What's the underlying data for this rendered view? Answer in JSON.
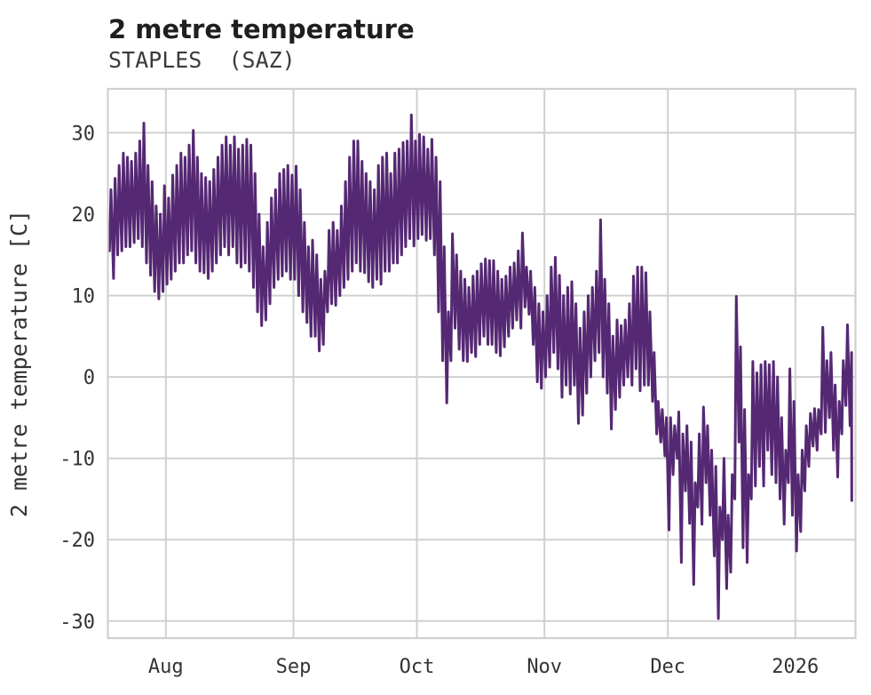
{
  "chart_data": {
    "type": "line",
    "title": "2 metre temperature",
    "subtitle": "STAPLES  (SAZ)",
    "ylabel": "2 metre temperature [C]",
    "series_name": "2 metre temperature",
    "unit": "C",
    "line_color": "#552873",
    "grid_color": "#d0d0d0",
    "background_color": "#ffffff",
    "grid": true,
    "legend": "none",
    "y_ticks": [
      -30,
      -20,
      -10,
      0,
      10,
      20,
      30
    ],
    "ylim": [
      -32.1,
      35.4
    ],
    "x_tick_labels": [
      "Aug",
      "Sep",
      "Oct",
      "Nov",
      "Dec",
      "2026"
    ],
    "x_tick_positions_days": [
      14,
      45,
      75,
      106,
      136,
      167
    ],
    "xlim_days": [
      -0.1,
      181.6
    ],
    "daily_min_max": [
      [
        15.5,
        23
      ],
      [
        12.1,
        24.4
      ],
      [
        15,
        26
      ],
      [
        15.5,
        27.5
      ],
      [
        16,
        27
      ],
      [
        16,
        26.5
      ],
      [
        16.5,
        27.5
      ],
      [
        17,
        29
      ],
      [
        16,
        31.2
      ],
      [
        14,
        26
      ],
      [
        12.5,
        24
      ],
      [
        10.5,
        21
      ],
      [
        9.6,
        20
      ],
      [
        10.5,
        23.5
      ],
      [
        11.4,
        22
      ],
      [
        12,
        24.8
      ],
      [
        13,
        26
      ],
      [
        14,
        27.5
      ],
      [
        14,
        27
      ],
      [
        15,
        28.5
      ],
      [
        15.5,
        30.3
      ],
      [
        14,
        27
      ],
      [
        13,
        25
      ],
      [
        12.8,
        24.5
      ],
      [
        12.1,
        24
      ],
      [
        13,
        25.5
      ],
      [
        14,
        27
      ],
      [
        15,
        28.5
      ],
      [
        16,
        29.5
      ],
      [
        15,
        28.5
      ],
      [
        16,
        29.5
      ],
      [
        14,
        28
      ],
      [
        13.5,
        28.5
      ],
      [
        14,
        29.2
      ],
      [
        13,
        28.5
      ],
      [
        11,
        25
      ],
      [
        8,
        20
      ],
      [
        6.3,
        16
      ],
      [
        7,
        19
      ],
      [
        9,
        22
      ],
      [
        11,
        23
      ],
      [
        12,
        25
      ],
      [
        12.4,
        25.5
      ],
      [
        13,
        26
      ],
      [
        12,
        24.8
      ],
      [
        12,
        25.9
      ],
      [
        10,
        23
      ],
      [
        8,
        19
      ],
      [
        6.7,
        16
      ],
      [
        5,
        16.8
      ],
      [
        5,
        15
      ],
      [
        3.2,
        12
      ],
      [
        4,
        13
      ],
      [
        8,
        18
      ],
      [
        9,
        19
      ],
      [
        8.8,
        18
      ],
      [
        10,
        21
      ],
      [
        11,
        24
      ],
      [
        12,
        27
      ],
      [
        13,
        29
      ],
      [
        14,
        29
      ],
      [
        13,
        26.5
      ],
      [
        12.8,
        25
      ],
      [
        11.7,
        24
      ],
      [
        11,
        23
      ],
      [
        12,
        26
      ],
      [
        11.4,
        27
      ],
      [
        13,
        27.5
      ],
      [
        13,
        25
      ],
      [
        14,
        27.5
      ],
      [
        14,
        28
      ],
      [
        15,
        28.8
      ],
      [
        16,
        29
      ],
      [
        17,
        32.2
      ],
      [
        16.1,
        29
      ],
      [
        17,
        29.8
      ],
      [
        17.5,
        29.5
      ],
      [
        16.8,
        28
      ],
      [
        17,
        29.2
      ],
      [
        15,
        27
      ],
      [
        8,
        24
      ],
      [
        2,
        16
      ],
      [
        -3.2,
        8
      ],
      [
        2,
        17.6
      ],
      [
        6,
        15
      ],
      [
        3.4,
        13
      ],
      [
        2,
        12
      ],
      [
        1.9,
        11
      ],
      [
        3,
        12.4
      ],
      [
        2.5,
        13
      ],
      [
        4,
        13.9
      ],
      [
        5,
        14.5
      ],
      [
        4,
        14.3
      ],
      [
        4,
        14.3
      ],
      [
        3,
        13
      ],
      [
        2.6,
        12
      ],
      [
        3.7,
        12.4
      ],
      [
        5,
        13.5
      ],
      [
        6,
        14
      ],
      [
        7,
        15.5
      ],
      [
        6,
        17.7
      ],
      [
        8.6,
        13.5
      ],
      [
        7.7,
        13
      ],
      [
        4,
        11
      ],
      [
        -0.6,
        9
      ],
      [
        -1.4,
        8
      ],
      [
        0,
        10
      ],
      [
        1.2,
        13.5
      ],
      [
        3,
        14.7
      ],
      [
        1,
        12.5
      ],
      [
        -2.5,
        10
      ],
      [
        -1,
        11
      ],
      [
        -2.1,
        11.7
      ],
      [
        -1,
        9
      ],
      [
        -5.7,
        6
      ],
      [
        -4.7,
        8
      ],
      [
        -2,
        10
      ],
      [
        0,
        11
      ],
      [
        2,
        13
      ],
      [
        3,
        19.3
      ],
      [
        0,
        12
      ],
      [
        -2,
        9
      ],
      [
        -6.4,
        5
      ],
      [
        -4,
        7
      ],
      [
        -2.5,
        6.3
      ],
      [
        -1,
        7
      ],
      [
        0,
        9
      ],
      [
        -1,
        12.4
      ],
      [
        1,
        13.5
      ],
      [
        -1.7,
        13.5
      ],
      [
        -1,
        12.8
      ],
      [
        -1,
        8
      ],
      [
        -3,
        3
      ],
      [
        -7,
        -3
      ],
      [
        -8,
        -4
      ],
      [
        -9.7,
        -5
      ],
      [
        -18.8,
        -5
      ],
      [
        -12,
        -6
      ],
      [
        -10,
        -4.3
      ],
      [
        -22.8,
        -7
      ],
      [
        -14,
        -6
      ],
      [
        -18,
        -8
      ],
      [
        -25.5,
        -13
      ],
      [
        -16,
        -7
      ],
      [
        -18.1,
        -3.7
      ],
      [
        -13,
        -6
      ],
      [
        -17,
        -9
      ],
      [
        -22,
        -11
      ],
      [
        -29.7,
        -16
      ],
      [
        -20,
        -10
      ],
      [
        -26,
        -17
      ],
      [
        -24,
        -12
      ],
      [
        -15,
        9.9
      ],
      [
        -8,
        3.7
      ],
      [
        -21,
        -4
      ],
      [
        -22.8,
        -12
      ],
      [
        -15,
        1.9
      ],
      [
        -13.4,
        0.5
      ],
      [
        -11,
        1.5
      ],
      [
        -13.4,
        1.9
      ],
      [
        -9,
        1.5
      ],
      [
        -12,
        1.9
      ],
      [
        -13,
        0
      ],
      [
        -15,
        -5
      ],
      [
        -18.1,
        -9
      ],
      [
        -13,
        1
      ],
      [
        -17,
        -3
      ],
      [
        -21.4,
        -12
      ],
      [
        -19,
        -9
      ],
      [
        -14,
        -6
      ],
      [
        -11,
        -4.5
      ],
      [
        -8.5,
        -3.9
      ],
      [
        -9,
        -4
      ],
      [
        -7,
        6.1
      ],
      [
        -6.8,
        2
      ],
      [
        -5,
        3
      ],
      [
        -9,
        -1
      ],
      [
        -12.3,
        -3
      ],
      [
        -7,
        2
      ],
      [
        -3.5,
        6.4
      ],
      [
        -6,
        3
      ]
    ],
    "end_point": {
      "day": 180.7,
      "value": -15.2
    },
    "observed_extremes": {
      "max": 32.2,
      "min": -29.7
    }
  }
}
